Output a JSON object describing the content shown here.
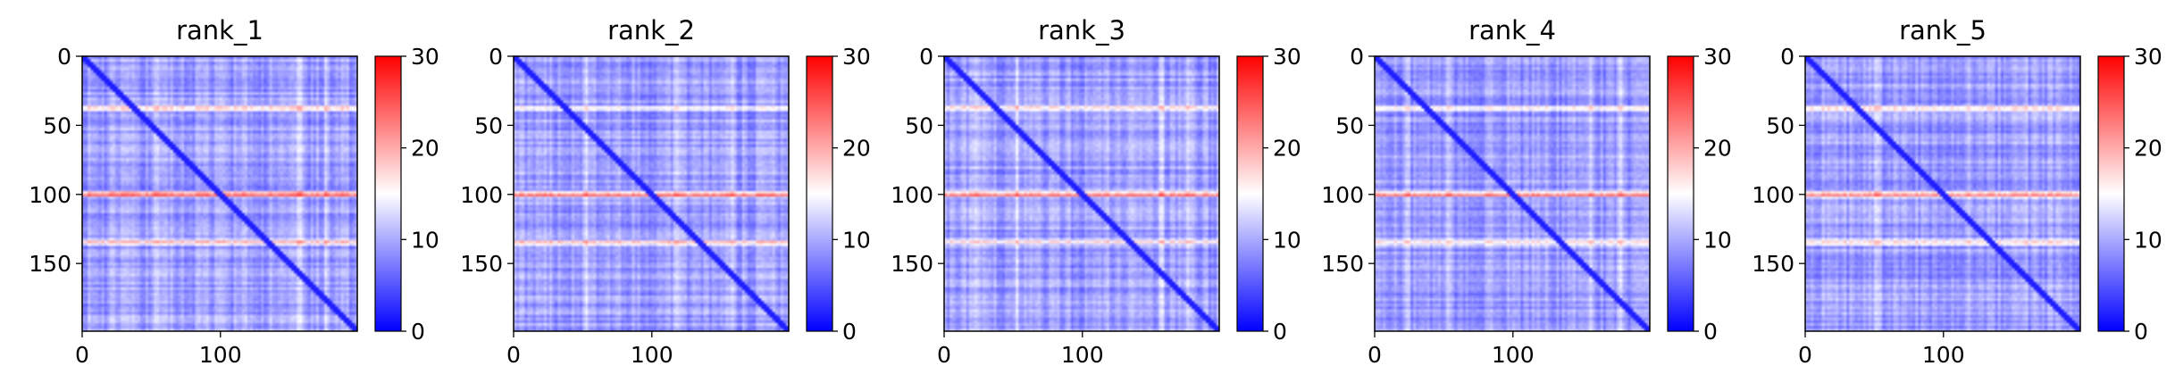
{
  "chart_data": [
    {
      "type": "heatmap",
      "title": "rank_1",
      "x_ticks": [
        0,
        100
      ],
      "y_ticks": [
        0,
        50,
        100,
        150
      ],
      "xlim": [
        0,
        199
      ],
      "ylim": [
        199,
        0
      ],
      "colorbar": {
        "min": 0,
        "max": 30,
        "ticks": [
          0,
          10,
          20,
          30
        ]
      },
      "colormap": [
        "#0000ff",
        "#ffffff",
        "#ff0000"
      ],
      "hot_rows": [
        37,
        100,
        135
      ],
      "hot_cols": [
        22,
        52,
        118,
        158,
        178
      ],
      "diagonal": "low"
    },
    {
      "type": "heatmap",
      "title": "rank_2",
      "x_ticks": [
        0,
        100
      ],
      "y_ticks": [
        0,
        50,
        100,
        150
      ],
      "xlim": [
        0,
        199
      ],
      "ylim": [
        199,
        0
      ],
      "colorbar": {
        "min": 0,
        "max": 30,
        "ticks": [
          0,
          10,
          20,
          30
        ]
      },
      "colormap": [
        "#0000ff",
        "#ffffff",
        "#ff0000"
      ],
      "hot_rows": [
        37,
        100,
        135
      ],
      "hot_cols": [
        22,
        52,
        118,
        158,
        178
      ],
      "diagonal": "low"
    },
    {
      "type": "heatmap",
      "title": "rank_3",
      "x_ticks": [
        0,
        100
      ],
      "y_ticks": [
        0,
        50,
        100,
        150
      ],
      "xlim": [
        0,
        199
      ],
      "ylim": [
        199,
        0
      ],
      "colorbar": {
        "min": 0,
        "max": 30,
        "ticks": [
          0,
          10,
          20,
          30
        ]
      },
      "colormap": [
        "#0000ff",
        "#ffffff",
        "#ff0000"
      ],
      "hot_rows": [
        37,
        100,
        135
      ],
      "hot_cols": [
        22,
        52,
        118,
        158,
        178
      ],
      "diagonal": "low"
    },
    {
      "type": "heatmap",
      "title": "rank_4",
      "x_ticks": [
        0,
        100
      ],
      "y_ticks": [
        0,
        50,
        100,
        150
      ],
      "xlim": [
        0,
        199
      ],
      "ylim": [
        199,
        0
      ],
      "colorbar": {
        "min": 0,
        "max": 30,
        "ticks": [
          0,
          10,
          20,
          30
        ]
      },
      "colormap": [
        "#0000ff",
        "#ffffff",
        "#ff0000"
      ],
      "hot_rows": [
        37,
        100,
        135
      ],
      "hot_cols": [
        22,
        52,
        118,
        158,
        178
      ],
      "diagonal": "low"
    },
    {
      "type": "heatmap",
      "title": "rank_5",
      "x_ticks": [
        0,
        100
      ],
      "y_ticks": [
        0,
        50,
        100,
        150
      ],
      "xlim": [
        0,
        199
      ],
      "ylim": [
        199,
        0
      ],
      "colorbar": {
        "min": 0,
        "max": 30,
        "ticks": [
          0,
          10,
          20,
          30
        ]
      },
      "colormap": [
        "#0000ff",
        "#ffffff",
        "#ff0000"
      ],
      "hot_rows": [
        37,
        100,
        135
      ],
      "hot_cols": [
        22,
        52,
        118,
        158,
        178
      ],
      "diagonal": "low"
    }
  ]
}
